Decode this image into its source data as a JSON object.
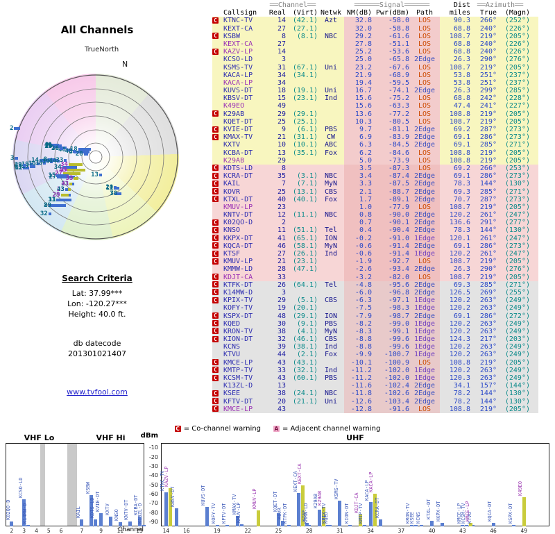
{
  "radar": {
    "title": "All Channels",
    "true_north": "TrueNorth",
    "north": "N"
  },
  "search": {
    "heading": "Search Criteria",
    "lat": "Lat: 37.99***",
    "lon": "Lon: -120.27***",
    "height": "Height: 40.0 ft."
  },
  "datecode": {
    "label": "db datecode",
    "value": "201301021407"
  },
  "link": {
    "text": "www.tvfool.com"
  },
  "legend": {
    "co_icon": "C",
    "co_text": "= Co-channel warning",
    "adj_icon": "A",
    "adj_text": "= Adjacent channel warning"
  },
  "colors": {
    "co_red": "#c40000",
    "adj_pink": "#f0a8c8",
    "link_blue": "#2222cc",
    "row_yellow": "#f8f6bf",
    "row_pink": "#f7d6d6",
    "row_gray": "#e3e3e3"
  },
  "spectrum": {
    "vhf_lo": "VHF Lo",
    "vhf_hi": "VHF Hi",
    "uhf": "UHF",
    "dbm": "dBm",
    "channel": "Channel",
    "dbm_ticks": [
      -10,
      -20,
      -30,
      -40,
      -50,
      -60,
      -70,
      -80,
      -90
    ],
    "vhf_lo_ticks": [
      2,
      3,
      4,
      5,
      6
    ],
    "vhf_hi_ticks": [
      7,
      9,
      11,
      13
    ],
    "uhf_ticks": [
      14,
      16,
      19,
      22,
      25,
      28,
      31,
      34,
      37,
      40,
      43,
      46,
      49
    ]
  },
  "table": {
    "head": {
      "group_channel": "══Channel══",
      "group_signal": "══════Signal══════",
      "group_dist": "Dist",
      "group_azimuth": "══Azimuth══",
      "callsign": "Callsign",
      "real": "Real",
      "virt": "(Virt)",
      "netwk": "Netwk",
      "nm": "NM(dB)",
      "pwr": "Pwr(dBm)",
      "path": "Path",
      "miles": "miles",
      "true": "True",
      "magn": "(Magn)"
    },
    "rows": [
      {
        "w": "C",
        "cs": "KTNC-TV",
        "real": 14,
        "virt": "(42.1)",
        "net": "Azt",
        "nm": 32.8,
        "pwr": -58.0,
        "path": "LOS",
        "mi": 90.3,
        "taz": 266,
        "maz": 252
      },
      {
        "w": "",
        "cs": "KEXT-CA",
        "real": 27,
        "virt": "(27.1)",
        "net": "",
        "nm": 32.0,
        "pwr": -58.8,
        "path": "LOS",
        "mi": 68.8,
        "taz": 240,
        "maz": 226
      },
      {
        "w": "C",
        "cs": "KSBW",
        "real": 8,
        "virt": "(8.1)",
        "net": "NBC",
        "nm": 29.2,
        "pwr": -61.6,
        "path": "LOS",
        "mi": 108.7,
        "taz": 219,
        "maz": 205
      },
      {
        "w": "",
        "cs": "KEXT-CA",
        "real": 27,
        "virt": "",
        "net": "",
        "nm": 27.8,
        "pwr": -51.1,
        "path": "LOS",
        "mi": 68.8,
        "taz": 240,
        "maz": 226,
        "a": true
      },
      {
        "w": "C",
        "cs": "KAZV-LP",
        "real": 14,
        "virt": "",
        "net": "",
        "nm": 25.2,
        "pwr": -53.6,
        "path": "LOS",
        "mi": 68.8,
        "taz": 240,
        "maz": 226,
        "a": true
      },
      {
        "w": "",
        "cs": "KCSO-LD",
        "real": 3,
        "virt": "",
        "net": "",
        "nm": 25.0,
        "pwr": -65.8,
        "path": "2Edge",
        "mi": 26.3,
        "taz": 290,
        "maz": 276
      },
      {
        "w": "",
        "cs": "KSMS-TV",
        "real": 31,
        "virt": "(67.1)",
        "net": "Uni",
        "nm": 23.2,
        "pwr": -67.6,
        "path": "LOS",
        "mi": 108.7,
        "taz": 219,
        "maz": 205
      },
      {
        "w": "",
        "cs": "KACA-LP",
        "real": 34,
        "virt": "(34.1)",
        "net": "",
        "nm": 21.9,
        "pwr": -68.9,
        "path": "LOS",
        "mi": 53.8,
        "taz": 251,
        "maz": 237
      },
      {
        "w": "",
        "cs": "KACA-LP",
        "real": 34,
        "virt": "",
        "net": "",
        "nm": 19.4,
        "pwr": -59.5,
        "path": "LOS",
        "mi": 53.8,
        "taz": 251,
        "maz": 237,
        "a": true
      },
      {
        "w": "",
        "cs": "KUVS-DT",
        "real": 18,
        "virt": "(19.1)",
        "net": "Uni",
        "nm": 16.7,
        "pwr": -74.1,
        "path": "2Edge",
        "mi": 26.3,
        "taz": 299,
        "maz": 285
      },
      {
        "w": "",
        "cs": "KBSV-DT",
        "real": 15,
        "virt": "(23.1)",
        "net": "Ind",
        "nm": 15.6,
        "pwr": -75.2,
        "path": "LOS",
        "mi": 68.8,
        "taz": 242,
        "maz": 228
      },
      {
        "w": "",
        "cs": "K49EO",
        "real": 49,
        "virt": "",
        "net": "",
        "nm": 15.6,
        "pwr": -63.3,
        "path": "LOS",
        "mi": 47.4,
        "taz": 241,
        "maz": 227,
        "a": true
      },
      {
        "w": "C",
        "cs": "K29AB",
        "real": 29,
        "virt": "(29.1)",
        "net": "",
        "nm": 13.6,
        "pwr": -77.2,
        "path": "LOS",
        "mi": 108.8,
        "taz": 219,
        "maz": 205
      },
      {
        "w": "",
        "cs": "KQET-DT",
        "real": 25,
        "virt": "(25.1)",
        "net": "",
        "nm": 10.3,
        "pwr": -80.5,
        "path": "LOS",
        "mi": 108.7,
        "taz": 219,
        "maz": 205
      },
      {
        "w": "C",
        "cs": "KVIE-DT",
        "real": 9,
        "virt": "(6.1)",
        "net": "PBS",
        "nm": 9.7,
        "pwr": -81.1,
        "path": "2Edge",
        "mi": 69.2,
        "taz": 287,
        "maz": 273
      },
      {
        "w": "C",
        "cs": "KMAX-TV",
        "real": 21,
        "virt": "(31.1)",
        "net": "CW",
        "nm": 6.9,
        "pwr": -83.9,
        "path": "2Edge",
        "mi": 69.1,
        "taz": 286,
        "maz": 273
      },
      {
        "w": "",
        "cs": "KXTV",
        "real": 10,
        "virt": "(10.1)",
        "net": "ABC",
        "nm": 6.3,
        "pwr": -84.5,
        "path": "2Edge",
        "mi": 69.1,
        "taz": 285,
        "maz": 271
      },
      {
        "w": "",
        "cs": "KCBA-DT",
        "real": 13,
        "virt": "(35.1)",
        "net": "Fox",
        "nm": 6.2,
        "pwr": -84.6,
        "path": "LOS",
        "mi": 108.8,
        "taz": 219,
        "maz": 205
      },
      {
        "w": "",
        "cs": "K29AB",
        "real": 29,
        "virt": "",
        "net": "",
        "nm": 5.0,
        "pwr": -73.9,
        "path": "LOS",
        "mi": 108.8,
        "taz": 219,
        "maz": 205,
        "a": true
      },
      {
        "w": "C",
        "cs": "KDTS-LD",
        "real": 8,
        "virt": "",
        "net": "",
        "nm": 3.5,
        "pwr": -87.3,
        "path": "LOS",
        "mi": 69.2,
        "taz": 266,
        "maz": 253
      },
      {
        "w": "C",
        "cs": "KCRA-DT",
        "real": 35,
        "virt": "(3.1)",
        "net": "NBC",
        "nm": 3.4,
        "pwr": -87.4,
        "path": "2Edge",
        "mi": 69.1,
        "taz": 286,
        "maz": 273
      },
      {
        "w": "C",
        "cs": "KAIL",
        "real": 7,
        "virt": "(7.1)",
        "net": "MyN",
        "nm": 3.3,
        "pwr": -87.5,
        "path": "2Edge",
        "mi": 78.3,
        "taz": 144,
        "maz": 130
      },
      {
        "w": "C",
        "cs": "KOVR",
        "real": 25,
        "virt": "(13.1)",
        "net": "CBS",
        "nm": 2.1,
        "pwr": -88.7,
        "path": "2Edge",
        "mi": 69.3,
        "taz": 285,
        "maz": 271
      },
      {
        "w": "C",
        "cs": "KTXL-DT",
        "real": 40,
        "virt": "(40.1)",
        "net": "Fox",
        "nm": 1.7,
        "pwr": -89.1,
        "path": "2Edge",
        "mi": 70.7,
        "taz": 287,
        "maz": 273
      },
      {
        "w": "",
        "cs": "KMUV-LP",
        "real": 23,
        "virt": "",
        "net": "",
        "nm": 1.0,
        "pwr": -77.9,
        "path": "LOS",
        "mi": 108.7,
        "taz": 219,
        "maz": 205,
        "a": true
      },
      {
        "w": "",
        "cs": "KNTV-DT",
        "real": 12,
        "virt": "(11.1)",
        "net": "NBC",
        "nm": 0.8,
        "pwr": -90.0,
        "path": "2Edge",
        "mi": 120.2,
        "taz": 261,
        "maz": 247
      },
      {
        "w": "C",
        "cs": "K02QO-D",
        "real": 2,
        "virt": "",
        "net": "",
        "nm": 0.7,
        "pwr": -90.1,
        "path": "2Edge",
        "mi": 136.6,
        "taz": 291,
        "maz": 277
      },
      {
        "w": "C",
        "cs": "KNSO",
        "real": 11,
        "virt": "(51.1)",
        "net": "Tel",
        "nm": 0.4,
        "pwr": -90.4,
        "path": "2Edge",
        "mi": 78.3,
        "taz": 144,
        "maz": 130
      },
      {
        "w": "C",
        "cs": "KKPX-DT",
        "real": 41,
        "virt": "(65.1)",
        "net": "ION",
        "nm": -0.2,
        "pwr": -91.0,
        "path": "1Edge",
        "mi": 120.1,
        "taz": 261,
        "maz": 247
      },
      {
        "w": "C",
        "cs": "KQCA-DT",
        "real": 46,
        "virt": "(58.1)",
        "net": "MyN",
        "nm": -0.6,
        "pwr": -91.4,
        "path": "2Edge",
        "mi": 69.1,
        "taz": 286,
        "maz": 273
      },
      {
        "w": "C",
        "cs": "KTSF",
        "real": 27,
        "virt": "(26.1)",
        "net": "Ind",
        "nm": -0.6,
        "pwr": -91.4,
        "path": "1Edge",
        "mi": 120.2,
        "taz": 261,
        "maz": 247
      },
      {
        "w": "C",
        "cs": "KMUV-LP",
        "real": 21,
        "virt": "(23.1)",
        "net": "",
        "nm": -1.9,
        "pwr": -92.7,
        "path": "LOS",
        "mi": 108.7,
        "taz": 219,
        "maz": 205
      },
      {
        "w": "",
        "cs": "KMMW-LD",
        "real": 28,
        "virt": "(47.1)",
        "net": "",
        "nm": -2.6,
        "pwr": -93.4,
        "path": "2Edge",
        "mi": 26.3,
        "taz": 290,
        "maz": 276
      },
      {
        "w": "C",
        "cs": "KDJT-CA",
        "real": 33,
        "virt": "",
        "net": "",
        "nm": -3.2,
        "pwr": -82.0,
        "path": "LOS",
        "mi": 108.7,
        "taz": 219,
        "maz": 205,
        "a": true
      },
      {
        "w": "C",
        "cs": "KTFK-DT",
        "real": 26,
        "virt": "(64.1)",
        "net": "Tel",
        "nm": -4.8,
        "pwr": -95.6,
        "path": "2Edge",
        "mi": 69.3,
        "taz": 285,
        "maz": 271
      },
      {
        "w": "C",
        "cs": "K14MW-D",
        "real": 3,
        "virt": "",
        "net": "",
        "nm": -6.0,
        "pwr": -96.8,
        "path": "2Edge",
        "mi": 126.5,
        "taz": 269,
        "maz": 255
      },
      {
        "w": "C",
        "cs": "KPIX-TV",
        "real": 29,
        "virt": "(5.1)",
        "net": "CBS",
        "nm": -6.3,
        "pwr": -97.1,
        "path": "1Edge",
        "mi": 120.2,
        "taz": 263,
        "maz": 249
      },
      {
        "w": "",
        "cs": "KOFY-TV",
        "real": 19,
        "virt": "(20.1)",
        "net": "",
        "nm": -7.5,
        "pwr": -98.3,
        "path": "1Edge",
        "mi": 120.2,
        "taz": 263,
        "maz": 249
      },
      {
        "w": "C",
        "cs": "KSPX-DT",
        "real": 48,
        "virt": "(29.1)",
        "net": "ION",
        "nm": -7.9,
        "pwr": -98.7,
        "path": "2Edge",
        "mi": 69.1,
        "taz": 286,
        "maz": 272
      },
      {
        "w": "C",
        "cs": "KQED",
        "real": 30,
        "virt": "(9.1)",
        "net": "PBS",
        "nm": -8.2,
        "pwr": -99.0,
        "path": "1Edge",
        "mi": 120.2,
        "taz": 263,
        "maz": 249
      },
      {
        "w": "C",
        "cs": "KRON-TV",
        "real": 38,
        "virt": "(4.1)",
        "net": "MyN",
        "nm": -8.3,
        "pwr": -99.1,
        "path": "1Edge",
        "mi": 120.2,
        "taz": 263,
        "maz": 249
      },
      {
        "w": "C",
        "cs": "KION-DT",
        "real": 32,
        "virt": "(46.1)",
        "net": "CBS",
        "nm": -8.8,
        "pwr": -99.6,
        "path": "1Edge",
        "mi": 124.3,
        "taz": 217,
        "maz": 203
      },
      {
        "w": "",
        "cs": "KCNS",
        "real": 39,
        "virt": "(38.1)",
        "net": "Ind",
        "nm": -8.8,
        "pwr": -99.6,
        "path": "1Edge",
        "mi": 120.2,
        "taz": 263,
        "maz": 249
      },
      {
        "w": "",
        "cs": "KTVU",
        "real": 44,
        "virt": "(2.1)",
        "net": "Fox",
        "nm": -9.9,
        "pwr": -100.7,
        "path": "1Edge",
        "mi": 120.2,
        "taz": 263,
        "maz": 249
      },
      {
        "w": "C",
        "cs": "KMCE-LP",
        "real": 43,
        "virt": "(43.1)",
        "net": "",
        "nm": -10.1,
        "pwr": -100.9,
        "path": "LOS",
        "mi": 108.8,
        "taz": 219,
        "maz": 205
      },
      {
        "w": "C",
        "cs": "KMTP-TV",
        "real": 33,
        "virt": "(32.1)",
        "net": "Ind",
        "nm": -11.2,
        "pwr": -102.0,
        "path": "1Edge",
        "mi": 120.2,
        "taz": 263,
        "maz": 249
      },
      {
        "w": "C",
        "cs": "KCSM-TV",
        "real": 43,
        "virt": "(60.1)",
        "net": "PBS",
        "nm": -11.2,
        "pwr": -102.0,
        "path": "1Edge",
        "mi": 120.3,
        "taz": 263,
        "maz": 249
      },
      {
        "w": "",
        "cs": "K13ZL-D",
        "real": 13,
        "virt": "",
        "net": "",
        "nm": -11.6,
        "pwr": -102.4,
        "path": "2Edge",
        "mi": 34.1,
        "taz": 157,
        "maz": 144
      },
      {
        "w": "C",
        "cs": "KSEE",
        "real": 38,
        "virt": "(24.1)",
        "net": "NBC",
        "nm": -11.8,
        "pwr": -102.6,
        "path": "2Edge",
        "mi": 78.2,
        "taz": 144,
        "maz": 130
      },
      {
        "w": "C",
        "cs": "KFTV-DT",
        "real": 20,
        "virt": "(21.1)",
        "net": "Uni",
        "nm": -12.6,
        "pwr": -103.4,
        "path": "2Edge",
        "mi": 78.2,
        "taz": 144,
        "maz": 130
      },
      {
        "w": "C",
        "cs": "KMCE-LP",
        "real": 43,
        "virt": "",
        "net": "",
        "nm": -12.8,
        "pwr": -91.6,
        "path": "LOS",
        "mi": 108.8,
        "taz": 219,
        "maz": 205,
        "a": true
      }
    ]
  }
}
